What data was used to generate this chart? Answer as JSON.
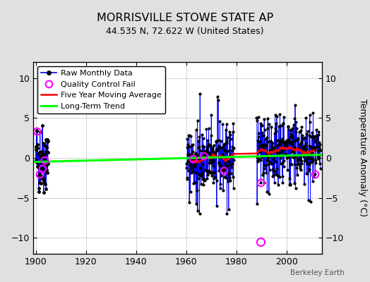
{
  "title": "MORRISVILLE STOWE STATE AP",
  "subtitle": "44.535 N, 72.622 W (United States)",
  "ylabel": "Temperature Anomaly (°C)",
  "credit": "Berkeley Earth",
  "xlim": [
    1899,
    2014
  ],
  "ylim": [
    -12,
    12
  ],
  "yticks": [
    -10,
    -5,
    0,
    5,
    10
  ],
  "xticks": [
    1900,
    1920,
    1940,
    1960,
    1980,
    2000
  ],
  "outer_bg": "#e0e0e0",
  "plot_bg": "#ffffff",
  "grid_color": "#cccccc",
  "seed": 42,
  "early_start": 1900.0,
  "early_end": 1905.0,
  "seg2_start": 1960.0,
  "seg2_end": 1979.0,
  "seg3_start": 1988.0,
  "seg3_end": 2013.5
}
